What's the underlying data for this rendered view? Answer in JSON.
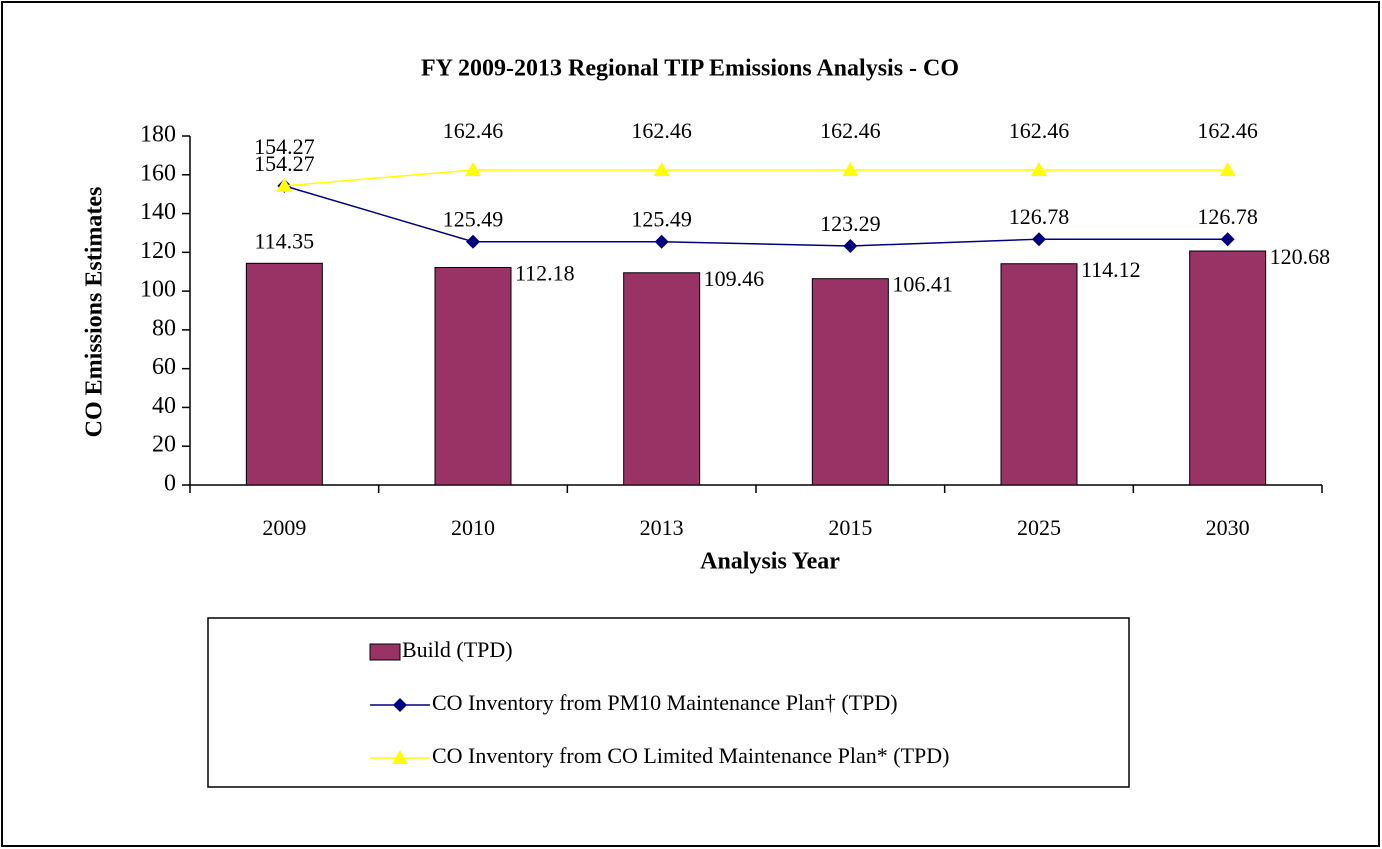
{
  "chart_data": {
    "type": "bar_line",
    "title": "FY 2009-2013 Regional TIP Emissions Analysis - CO",
    "x_label": "Analysis Year",
    "y_label": "CO Emissions Estimates",
    "categories": [
      "2009",
      "2010",
      "2013",
      "2015",
      "2025",
      "2030"
    ],
    "series": [
      {
        "name": "Build (TPD)",
        "type": "bar",
        "color": "#993366",
        "values": [
          114.35,
          112.18,
          109.46,
          106.41,
          114.12,
          120.68
        ]
      },
      {
        "name": "CO Inventory from PM10 Maintenance Plan† (TPD)",
        "type": "line",
        "marker": "diamond",
        "color": "#000080",
        "values": [
          154.27,
          125.49,
          125.49,
          123.29,
          126.78,
          126.78
        ]
      },
      {
        "name": "CO Inventory from CO Limited Maintenance Plan* (TPD)",
        "type": "line",
        "marker": "triangle",
        "color": "#FFFF00",
        "values": [
          154.27,
          162.46,
          162.46,
          162.46,
          162.46,
          162.46
        ]
      }
    ],
    "ylim": [
      0,
      180
    ],
    "yticks": [
      0,
      20,
      40,
      60,
      80,
      100,
      120,
      140,
      160,
      180
    ],
    "legend": "bottom"
  }
}
